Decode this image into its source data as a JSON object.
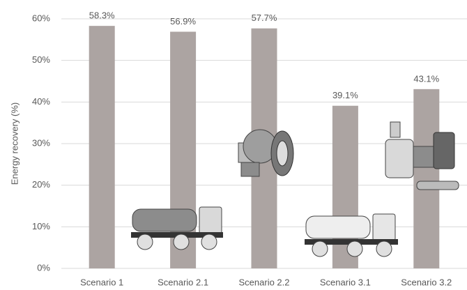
{
  "chart_data": {
    "type": "bar",
    "y_label": "Energy recovery (%)",
    "categories": [
      "Scenario 1",
      "Scenario 2.1",
      "Scenario 2.2",
      "Scenario 3.1",
      "Scenario 3.2"
    ],
    "values": [
      58.3,
      56.9,
      57.7,
      39.1,
      43.1
    ],
    "value_labels": [
      "58.3%",
      "56.9%",
      "57.7%",
      "39.1%",
      "43.1%"
    ],
    "color": "#aca4a2",
    "ylim": [
      0,
      60
    ],
    "yticks": [
      {
        "value": 0,
        "label": "0%"
      },
      {
        "value": 10,
        "label": "10%"
      },
      {
        "value": 20,
        "label": "20%"
      },
      {
        "value": 30,
        "label": "30%"
      },
      {
        "value": 40,
        "label": "40%"
      },
      {
        "value": 50,
        "label": "50%"
      },
      {
        "value": 60,
        "label": "60%"
      }
    ],
    "grid": true
  }
}
